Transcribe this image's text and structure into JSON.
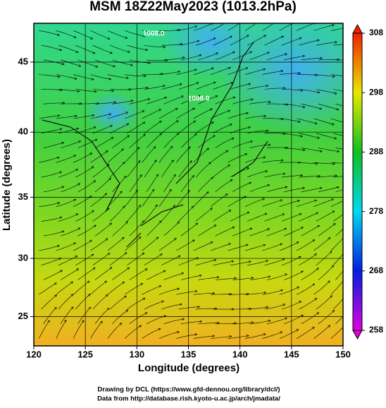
{
  "chart_data": {
    "type": "map",
    "title": "MSM 18Z22May2023 (1013.2hPa)",
    "x_label": "Longitude (degrees)",
    "y_label": "Latitude  (degrees)",
    "projection": "mercator",
    "xlim": [
      120,
      150
    ],
    "xticks": [
      120,
      125,
      130,
      135,
      140,
      145,
      150
    ],
    "ylim": [
      22.4,
      47.6
    ],
    "yticks": [
      25,
      30,
      35,
      40,
      45
    ],
    "grid": true,
    "colorbar": {
      "lim": [
        258,
        308
      ],
      "ticks": [
        258,
        268,
        278,
        288,
        298,
        308
      ],
      "colors": [
        "#e000e0",
        "#0020e0",
        "#00d8f0",
        "#10c020",
        "#e8e800",
        "#f02000"
      ]
    },
    "contour_labels": [
      "1008.0",
      "1008.0"
    ],
    "footer": [
      "Drawing by DCL (https://www.gfd-dennou.org/library/dcl/)",
      "Data from http://database.rish.kyoto-u.ac.jp/arch/jmadata/"
    ]
  }
}
